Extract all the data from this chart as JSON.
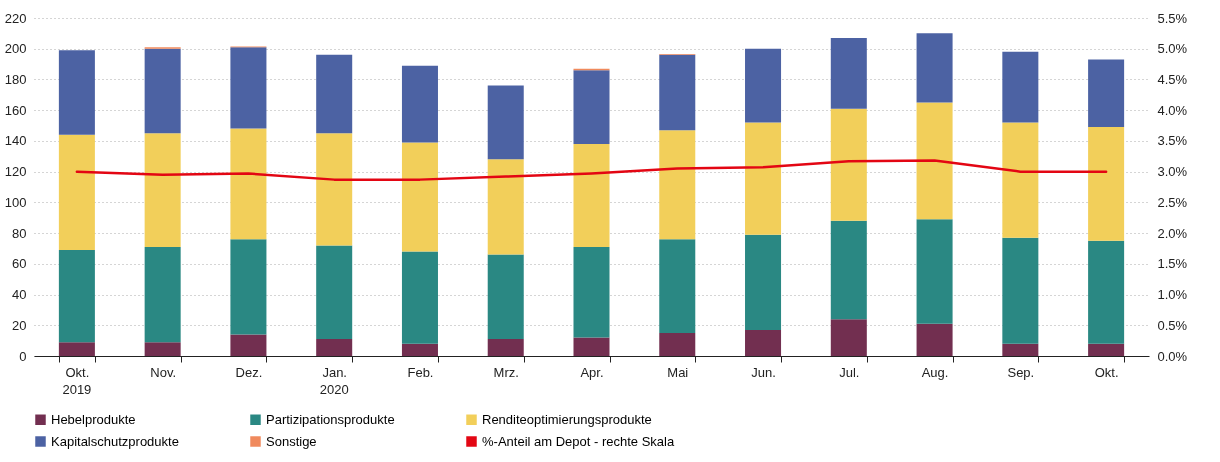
{
  "chart_data": {
    "type": "bar",
    "stacked": true,
    "categories": [
      "Okt.",
      "Nov.",
      "Dez.",
      "Jan.",
      "Feb.",
      "Mrz.",
      "Apr.",
      "Mai",
      "Jun.",
      "Jul.",
      "Aug.",
      "Sep.",
      "Okt."
    ],
    "series": [
      {
        "name": "Hebelprodukte",
        "color": "#722f50",
        "values": [
          9,
          9,
          14,
          11,
          8,
          11,
          12,
          15,
          17,
          24,
          21,
          8,
          8
        ]
      },
      {
        "name": "Partizipationsprodukte",
        "color": "#2a8883",
        "values": [
          60,
          62,
          62,
          61,
          60,
          55,
          59,
          61,
          62,
          64,
          68,
          69,
          67
        ]
      },
      {
        "name": "Renditeoptimierungsprodukte",
        "color": "#f2cf5a",
        "values": [
          75,
          74,
          72,
          73,
          71,
          62,
          67,
          71,
          73,
          73,
          76,
          75,
          74
        ]
      },
      {
        "name": "Kapitalschutzprodukte",
        "color": "#4c62a3",
        "values": [
          55,
          55,
          53,
          51,
          50,
          48,
          48,
          49,
          48,
          46,
          45,
          46,
          44
        ]
      },
      {
        "name": "Sonstige",
        "color": "#f08a5d",
        "values": [
          null,
          1,
          0.5,
          null,
          null,
          null,
          1,
          0.5,
          null,
          null,
          null,
          null,
          null
        ]
      },
      {
        "name": "%-Anteil am Depot - rechte Skala",
        "color": "#e30613",
        "type": "line",
        "axis": "y2",
        "values": [
          3.0,
          2.95,
          2.97,
          2.87,
          2.87,
          2.92,
          2.97,
          3.05,
          3.07,
          3.17,
          3.18,
          3.0,
          3.0
        ]
      }
    ],
    "ylim": [
      0,
      220
    ],
    "yticks": [
      0,
      20,
      40,
      60,
      80,
      100,
      120,
      140,
      160,
      180,
      200,
      220
    ],
    "y2lim": [
      0,
      5.5
    ],
    "y2ticks": [
      {
        "value": 0,
        "label": "0.0%"
      },
      {
        "value": 0.5,
        "label": "0.5%"
      },
      {
        "value": 1,
        "label": "1.0%"
      },
      {
        "value": 1.5,
        "label": "1.5%"
      },
      {
        "value": 2,
        "label": "2.0%"
      },
      {
        "value": 2.5,
        "label": "2.5%"
      },
      {
        "value": 3,
        "label": "3.0%"
      },
      {
        "value": 3.5,
        "label": "3.5%"
      },
      {
        "value": 4,
        "label": "4.0%"
      },
      {
        "value": 4.5,
        "label": "4.5%"
      },
      {
        "value": 5,
        "label": "5.0%"
      },
      {
        "value": 5.5,
        "label": "5.5%"
      }
    ],
    "grid": "y",
    "legend": "bottom",
    "annotations": [
      "2019",
      "2020"
    ]
  }
}
